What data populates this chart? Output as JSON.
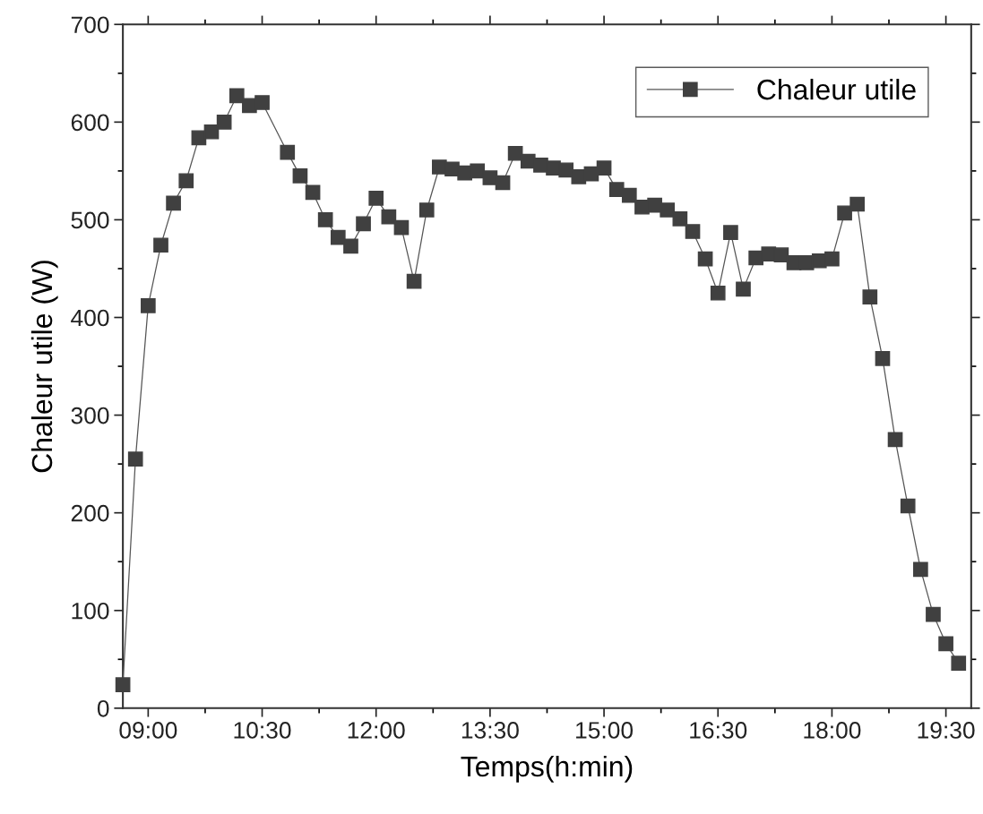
{
  "chart_data": {
    "type": "line",
    "xlabel": "Temps(h:min)",
    "ylabel": "Chaleur utile (W)",
    "xlim": [
      8.667,
      19.833
    ],
    "ylim": [
      0,
      700
    ],
    "xticks": [
      {
        "value": 9,
        "label": "09:00"
      },
      {
        "value": 9.75,
        "label": null
      },
      {
        "value": 10.5,
        "label": "10:30"
      },
      {
        "value": 11.25,
        "label": null
      },
      {
        "value": 12,
        "label": "12:00"
      },
      {
        "value": 12.75,
        "label": null
      },
      {
        "value": 13.5,
        "label": "13:30"
      },
      {
        "value": 14.25,
        "label": null
      },
      {
        "value": 15,
        "label": "15:00"
      },
      {
        "value": 15.75,
        "label": null
      },
      {
        "value": 16.5,
        "label": "16:30"
      },
      {
        "value": 17.25,
        "label": null
      },
      {
        "value": 18,
        "label": "18:00"
      },
      {
        "value": 18.75,
        "label": null
      },
      {
        "value": 19.5,
        "label": "19:30"
      }
    ],
    "yticks": [
      0,
      {
        "value": 50,
        "label": null
      },
      100,
      {
        "value": 150,
        "label": null
      },
      200,
      {
        "value": 250,
        "label": null
      },
      300,
      {
        "value": 350,
        "label": null
      },
      400,
      {
        "value": 450,
        "label": null
      },
      500,
      {
        "value": 550,
        "label": null
      },
      600,
      {
        "value": 650,
        "label": null
      },
      700
    ],
    "grid": false,
    "legend": "top right",
    "marker": "square",
    "line_style": "solid",
    "series": [
      {
        "name": "Chaleur utile",
        "color": "#404040",
        "x": [
          8.667,
          8.833,
          9.0,
          9.167,
          9.333,
          9.5,
          9.667,
          9.833,
          10.0,
          10.167,
          10.333,
          10.5,
          10.833,
          11.0,
          11.167,
          11.333,
          11.5,
          11.667,
          11.833,
          12.0,
          12.167,
          12.333,
          12.5,
          12.667,
          12.833,
          13.0,
          13.167,
          13.333,
          13.5,
          13.667,
          13.833,
          14.0,
          14.167,
          14.333,
          14.5,
          14.667,
          14.833,
          15.0,
          15.167,
          15.333,
          15.5,
          15.667,
          15.833,
          16.0,
          16.167,
          16.333,
          16.5,
          16.667,
          16.833,
          17.0,
          17.167,
          17.333,
          17.5,
          17.667,
          17.833,
          18.0,
          18.167,
          18.333,
          18.5,
          18.667,
          18.833,
          19.0,
          19.167,
          19.333,
          19.5,
          19.667
        ],
        "values": [
          24,
          255,
          412,
          474,
          517,
          540,
          584,
          590,
          600,
          627,
          617,
          620,
          569,
          545,
          528,
          500,
          482,
          473,
          496,
          522,
          503,
          492,
          437,
          510,
          554,
          552,
          548,
          550,
          543,
          538,
          568,
          560,
          556,
          553,
          551,
          544,
          547,
          553,
          531,
          525,
          513,
          515,
          510,
          501,
          488,
          460,
          425,
          487,
          429,
          461,
          465,
          464,
          456,
          456,
          458,
          460,
          507,
          516,
          421,
          358,
          275,
          207,
          142,
          96,
          66,
          46
        ]
      }
    ]
  }
}
